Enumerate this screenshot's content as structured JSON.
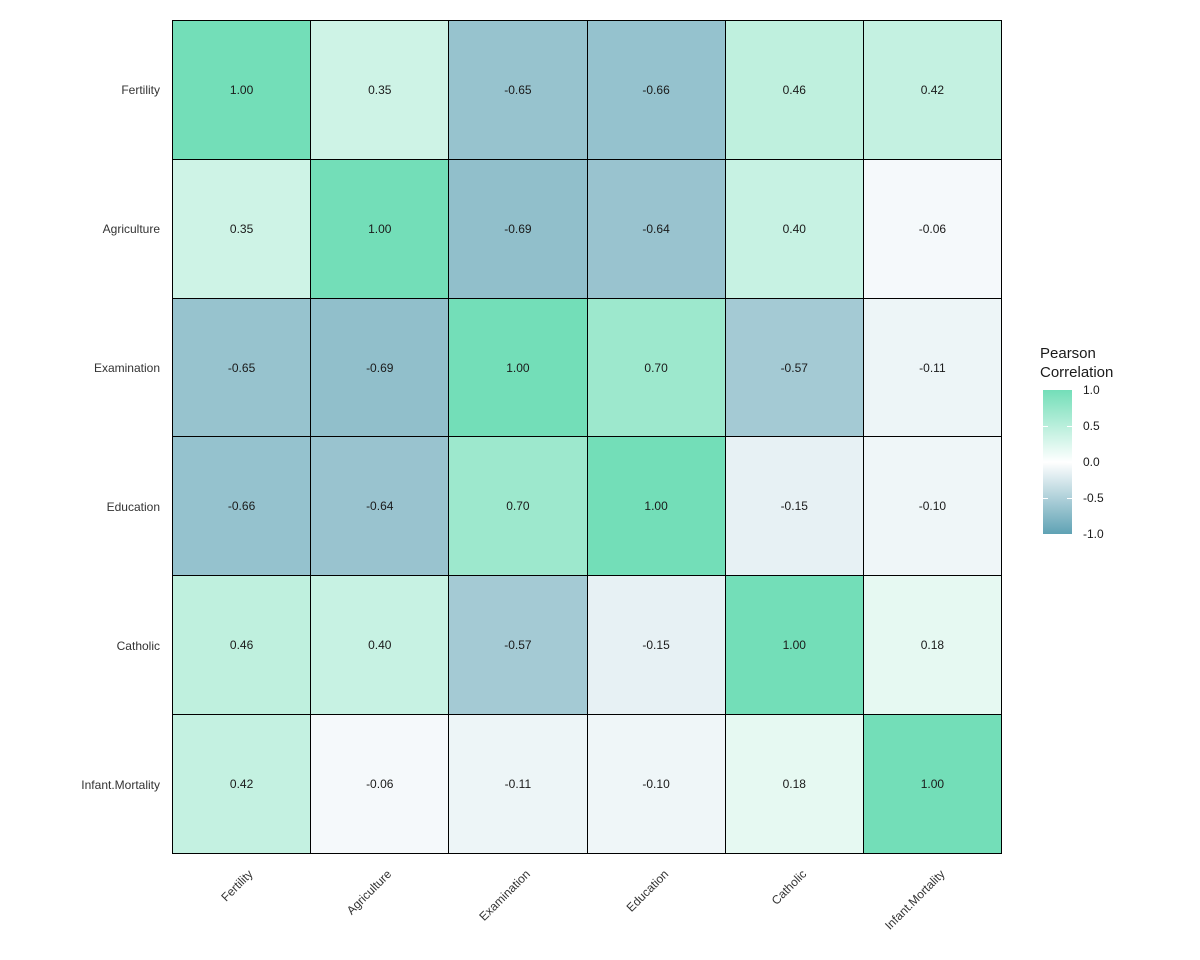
{
  "chart_data": {
    "type": "heatmap",
    "title": "",
    "categories": [
      "Fertility",
      "Agriculture",
      "Examination",
      "Education",
      "Catholic",
      "Infant.Mortality"
    ],
    "matrix": [
      [
        1.0,
        0.35,
        -0.65,
        -0.66,
        0.46,
        0.42
      ],
      [
        0.35,
        1.0,
        -0.69,
        -0.64,
        0.4,
        -0.06
      ],
      [
        -0.65,
        -0.69,
        1.0,
        0.7,
        -0.57,
        -0.11
      ],
      [
        -0.66,
        -0.64,
        0.7,
        1.0,
        -0.15,
        -0.1
      ],
      [
        0.46,
        0.4,
        -0.57,
        -0.15,
        1.0,
        0.18
      ],
      [
        0.42,
        -0.06,
        -0.11,
        -0.1,
        0.18,
        1.0
      ]
    ],
    "zlim": [
      -1,
      1
    ],
    "value_decimals": 2,
    "legend": {
      "title_lines": [
        "Pearson",
        "Correlation"
      ],
      "ticks": [
        "1.0",
        "0.5",
        "0.0",
        "-0.5",
        "-1.0"
      ],
      "tick_values": [
        1.0,
        0.5,
        0.0,
        -0.5,
        -1.0
      ],
      "position": "right"
    },
    "colors": {
      "high": "#73deb8",
      "mid": "#ffffff",
      "low": "#5fa2b4",
      "grid_line": "#000000",
      "background": "#ffffff",
      "cell_text": "#1a1a1a",
      "axis_text": "#333333"
    },
    "layout": {
      "grid": "off",
      "x_label_angle_deg": 45,
      "y_axis_side": "left",
      "x_axis_side": "bottom"
    }
  }
}
